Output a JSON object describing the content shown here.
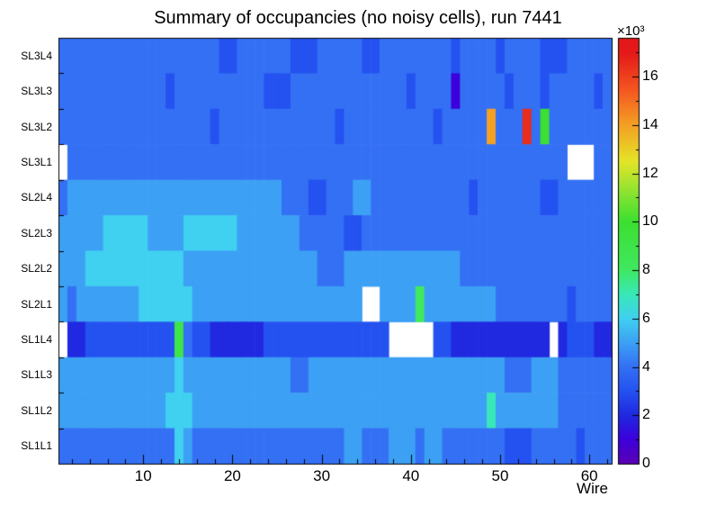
{
  "chart_data": {
    "type": "heatmap",
    "title": "Summary of occupancies (no noisy cells), run 7441",
    "xlabel": "Wire",
    "ylabel": "",
    "rows": [
      "SL3L4",
      "SL3L3",
      "SL3L2",
      "SL3L1",
      "SL2L4",
      "SL2L3",
      "SL2L2",
      "SL2L1",
      "SL1L4",
      "SL1L3",
      "SL1L2",
      "SL1L1"
    ],
    "n_wires": 62,
    "x_ticks": [
      10,
      20,
      30,
      40,
      50,
      60
    ],
    "values_unit": "×10³ counts per cell; null = empty (noisy/masked cell, drawn white)",
    "colorbar": {
      "min": 0,
      "max": 17.6,
      "ticks": [
        0,
        2,
        4,
        6,
        8,
        10,
        12,
        14,
        16
      ],
      "multiplier": "×10³"
    },
    "palette_stops": [
      [
        0.0,
        "#5a00b4"
      ],
      [
        1.0,
        "#3c00dc"
      ],
      [
        2.0,
        "#2028e0"
      ],
      [
        3.0,
        "#2452f0"
      ],
      [
        4.0,
        "#3470f4"
      ],
      [
        5.0,
        "#3ca0f4"
      ],
      [
        6.0,
        "#40d0f0"
      ],
      [
        7.0,
        "#38e8b8"
      ],
      [
        8.0,
        "#40e860"
      ],
      [
        10.0,
        "#3ce030"
      ],
      [
        11.5,
        "#a0e430"
      ],
      [
        12.5,
        "#e4e428"
      ],
      [
        14.0,
        "#f4a024"
      ],
      [
        15.5,
        "#f45420"
      ],
      [
        17.0,
        "#e41818"
      ]
    ],
    "values": [
      [
        4,
        4,
        4,
        4,
        4,
        4,
        4,
        4,
        4,
        4,
        4,
        4,
        4,
        4,
        4,
        4,
        4,
        4,
        3,
        3,
        4,
        4,
        4,
        4,
        4,
        4,
        3,
        3,
        3,
        4,
        4,
        4,
        4,
        4,
        3,
        3,
        4,
        4,
        4,
        4,
        4,
        4,
        4,
        4,
        3,
        4,
        4,
        4,
        4,
        3,
        4,
        4,
        4,
        4,
        3,
        3,
        3,
        4,
        4,
        4,
        4,
        4
      ],
      [
        4,
        4,
        4,
        4,
        4,
        4,
        4,
        4,
        4,
        4,
        4,
        4,
        3,
        4,
        4,
        4,
        4,
        4,
        4,
        4,
        4,
        4,
        4,
        3,
        3,
        3,
        4,
        4,
        4,
        4,
        4,
        4,
        4,
        4,
        4,
        4,
        4,
        4,
        4,
        3,
        4,
        4,
        4,
        4,
        1,
        4,
        4,
        4,
        4,
        4,
        3,
        4,
        4,
        4,
        3,
        4,
        4,
        4,
        4,
        4,
        3,
        4
      ],
      [
        4,
        4,
        4,
        4,
        4,
        4,
        4,
        4,
        4,
        4,
        4,
        4,
        4,
        4,
        4,
        4,
        4,
        3,
        4,
        4,
        4,
        4,
        4,
        4,
        4,
        4,
        4,
        4,
        4,
        4,
        4,
        3,
        4,
        4,
        4,
        4,
        4,
        4,
        4,
        4,
        4,
        4,
        3,
        4,
        4,
        4,
        4,
        4,
        14,
        4,
        4,
        4,
        16.5,
        4,
        10,
        4,
        4,
        4,
        4,
        4,
        4,
        4
      ],
      [
        null,
        4,
        4,
        4,
        4,
        4,
        4,
        4,
        4,
        4,
        4,
        4,
        4,
        4,
        4,
        4,
        4,
        4,
        4,
        4,
        4,
        4,
        4,
        4,
        4,
        4,
        4,
        4,
        4,
        4,
        4,
        4,
        4,
        4,
        4,
        4,
        4,
        4,
        4,
        4,
        4,
        4,
        4,
        4,
        4,
        4,
        4,
        4,
        4,
        4,
        4,
        4,
        4,
        4,
        4,
        4,
        4,
        null,
        null,
        null,
        4,
        4
      ],
      [
        4,
        5,
        5,
        5,
        5,
        5,
        5,
        5,
        5,
        5,
        5,
        5,
        5,
        5,
        5,
        5,
        5,
        5,
        5,
        5,
        5,
        5,
        5,
        5,
        5,
        4,
        4,
        4,
        3,
        3,
        4,
        4,
        4,
        5,
        5,
        4,
        4,
        4,
        4,
        4,
        4,
        4,
        4,
        4,
        4,
        4,
        3,
        4,
        4,
        4,
        4,
        4,
        4,
        4,
        3,
        3,
        4,
        4,
        4,
        4,
        4,
        4
      ],
      [
        5,
        5,
        5,
        5,
        5,
        6,
        6,
        6,
        6,
        6,
        5,
        5,
        5,
        5,
        6,
        6,
        6,
        6,
        6,
        6,
        5,
        5,
        5,
        5,
        5,
        5,
        5,
        4,
        4,
        4,
        4,
        4,
        3,
        3,
        4,
        4,
        4,
        4,
        4,
        4,
        4,
        4,
        4,
        4,
        4,
        4,
        4,
        4,
        4,
        4,
        4,
        4,
        4,
        4,
        4,
        4,
        4,
        4,
        4,
        4,
        4,
        4
      ],
      [
        5,
        5,
        5,
        6,
        6,
        6,
        6,
        6,
        6,
        6,
        6,
        6,
        6,
        6,
        5,
        5,
        5,
        5,
        5,
        5,
        5,
        5,
        5,
        5,
        5,
        5,
        5,
        5,
        5,
        4,
        4,
        4,
        5,
        5,
        5,
        5,
        5,
        5,
        5,
        5,
        5,
        5,
        5,
        5,
        5,
        4,
        4,
        4,
        4,
        4,
        4,
        4,
        4,
        4,
        4,
        4,
        4,
        4,
        4,
        4,
        4,
        4
      ],
      [
        5,
        4,
        5,
        5,
        5,
        5,
        5,
        5,
        5,
        6,
        6,
        6,
        6,
        6,
        6,
        5,
        5,
        5,
        5,
        5,
        5,
        5,
        5,
        5,
        5,
        5,
        5,
        5,
        5,
        5,
        5,
        5,
        5,
        5,
        null,
        null,
        5,
        5,
        5,
        5,
        8,
        5,
        5,
        5,
        5,
        5,
        5,
        5,
        5,
        4,
        4,
        4,
        4,
        4,
        4,
        4,
        4,
        3,
        4,
        4,
        4,
        4
      ],
      [
        null,
        2,
        2,
        3,
        3,
        3,
        3,
        3,
        3,
        3,
        3,
        3,
        3,
        9,
        4,
        3,
        3,
        2,
        2,
        2,
        2,
        2,
        2,
        3,
        3,
        3,
        3,
        3,
        3,
        3,
        3,
        3,
        3,
        3,
        3,
        3,
        3,
        null,
        null,
        null,
        null,
        null,
        3,
        3,
        2,
        2,
        2,
        2,
        2,
        2,
        2,
        2,
        2,
        2,
        2,
        null,
        2,
        3,
        3,
        3,
        2,
        2
      ],
      [
        5,
        5,
        5,
        5,
        5,
        5,
        5,
        5,
        5,
        5,
        5,
        5,
        5,
        6,
        5,
        5,
        5,
        5,
        5,
        5,
        5,
        5,
        5,
        5,
        5,
        5,
        4,
        4,
        5,
        5,
        5,
        5,
        5,
        5,
        5,
        5,
        5,
        5,
        5,
        5,
        5,
        5,
        5,
        5,
        5,
        5,
        5,
        5,
        5,
        5,
        4,
        4,
        4,
        5,
        5,
        5,
        4,
        4,
        4,
        4,
        4,
        4
      ],
      [
        5,
        5,
        5,
        5,
        5,
        5,
        5,
        5,
        5,
        5,
        5,
        5,
        6,
        6,
        6,
        5,
        5,
        5,
        5,
        5,
        5,
        5,
        5,
        5,
        5,
        5,
        5,
        5,
        5,
        5,
        5,
        5,
        5,
        5,
        5,
        5,
        5,
        5,
        5,
        5,
        5,
        5,
        5,
        5,
        5,
        5,
        5,
        5,
        7,
        5,
        5,
        5,
        5,
        5,
        5,
        5,
        4,
        4,
        4,
        4,
        4,
        4
      ],
      [
        4,
        4,
        4,
        4,
        4,
        4,
        4,
        4,
        4,
        4,
        4,
        4,
        4,
        6,
        5,
        4,
        4,
        4,
        4,
        4,
        4,
        4,
        4,
        4,
        4,
        4,
        4,
        4,
        4,
        4,
        4,
        4,
        5,
        5,
        4,
        4,
        4,
        5,
        5,
        5,
        4,
        5,
        5,
        4,
        4,
        4,
        4,
        4,
        4,
        4,
        3,
        3,
        3,
        4,
        4,
        4,
        4,
        4,
        3,
        4,
        4,
        4
      ]
    ]
  }
}
